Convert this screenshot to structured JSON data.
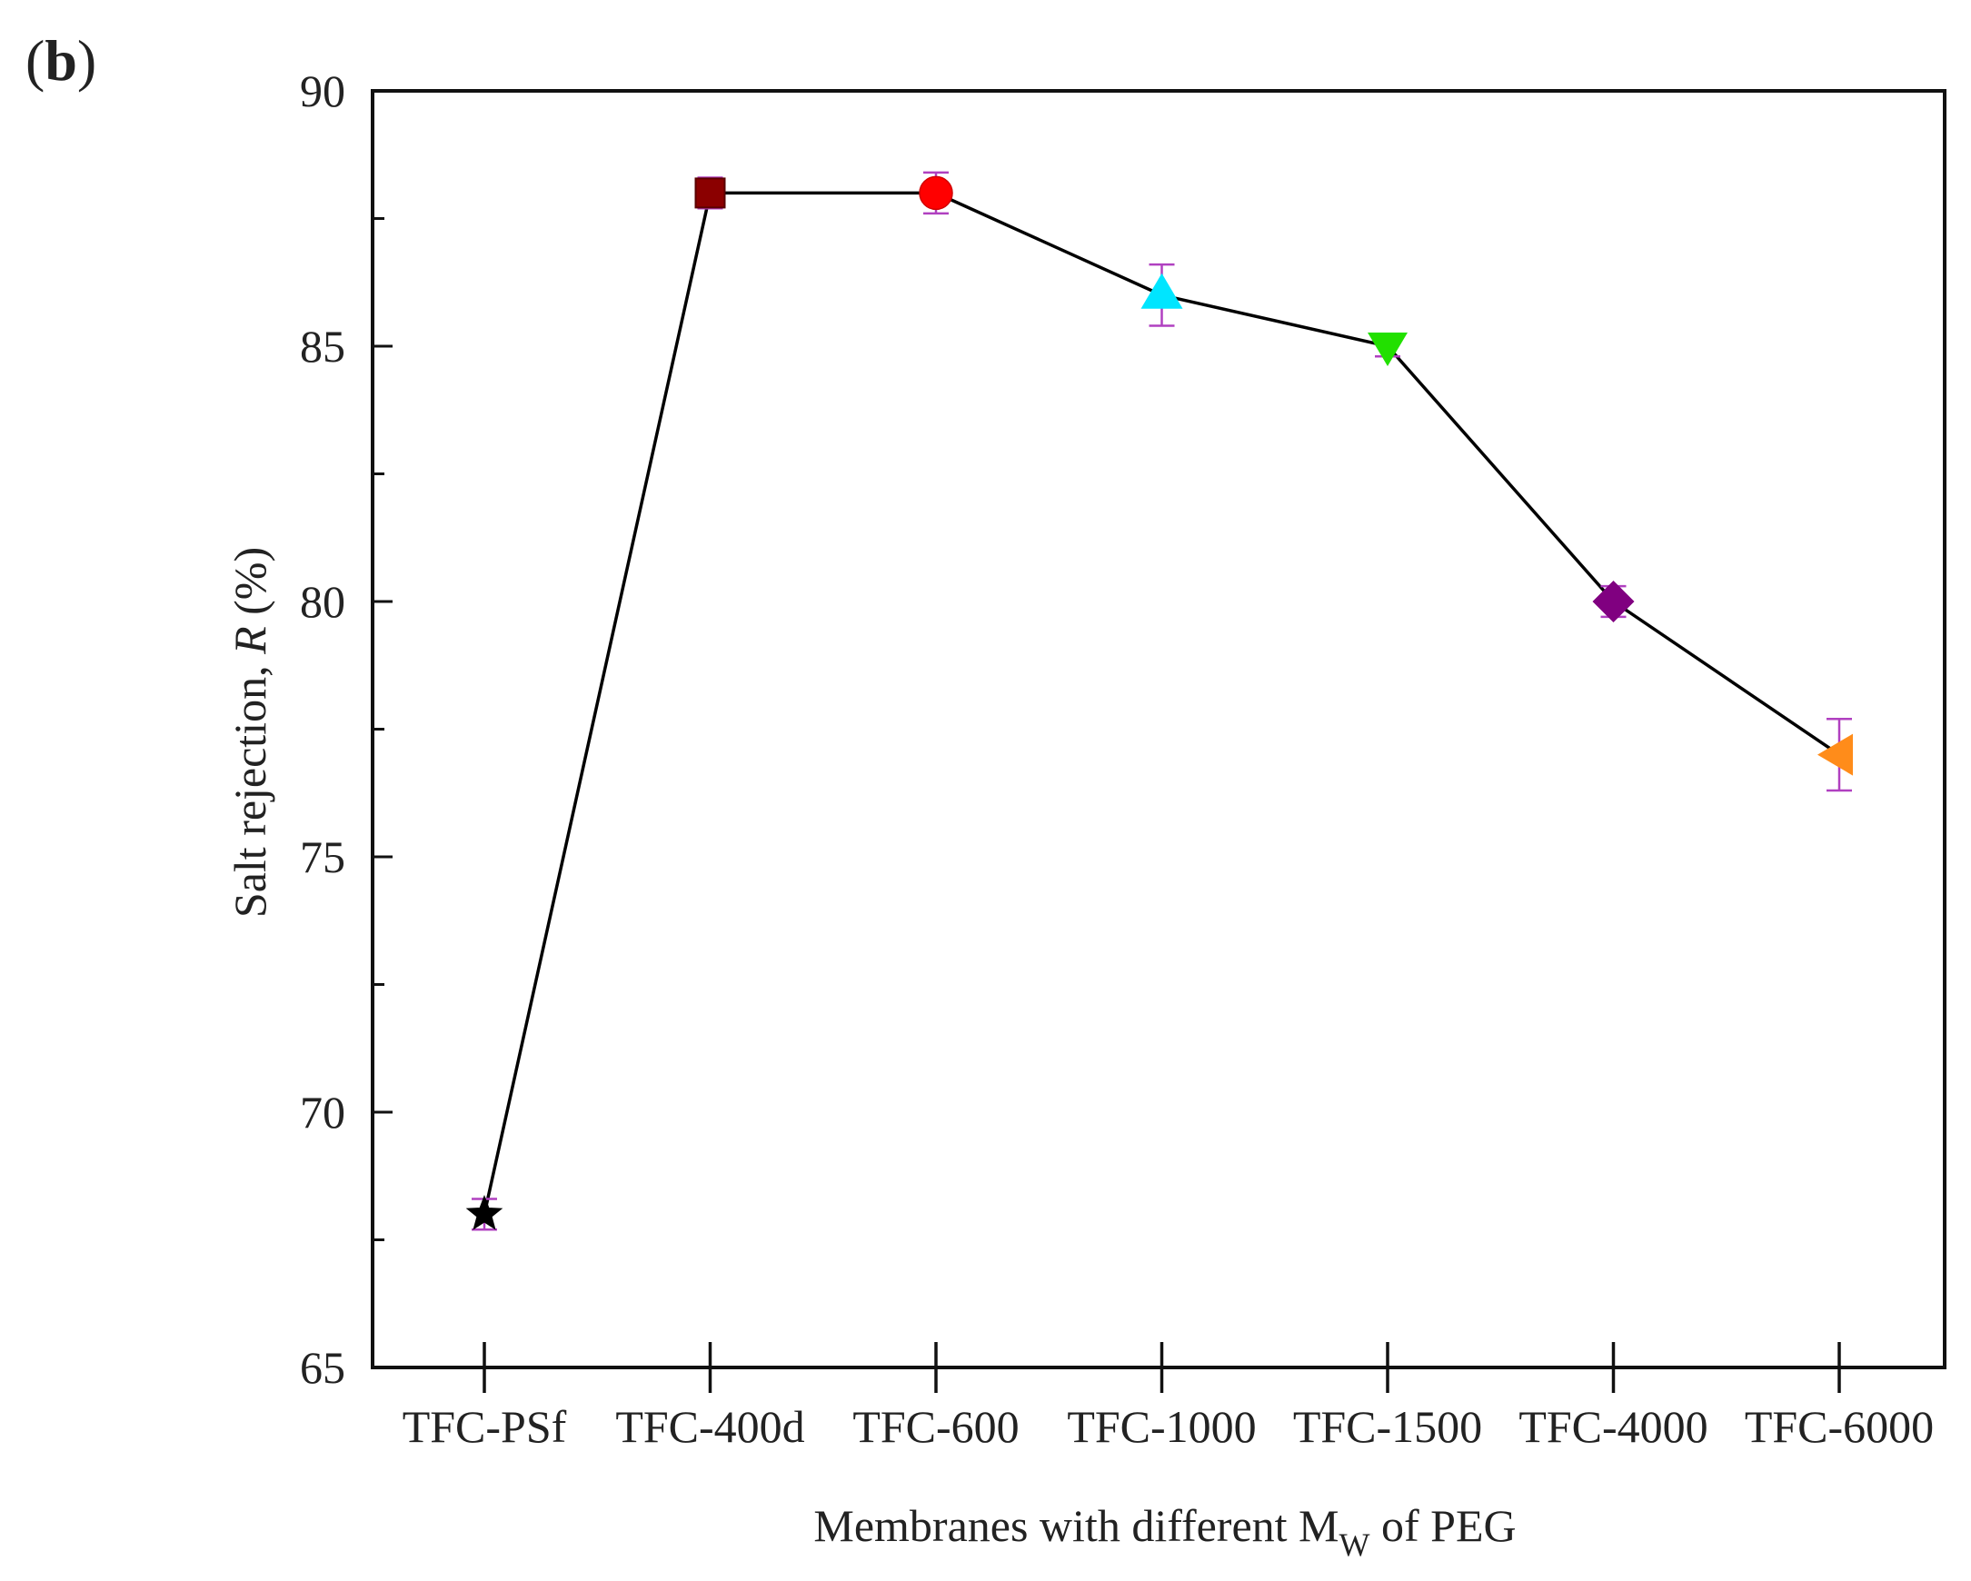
{
  "panel_label": "b",
  "chart_data": {
    "type": "line",
    "title": "",
    "xlabel": "Membranes with different M",
    "xlabel_subscript": "W",
    "xlabel_suffix": " of PEG",
    "ylabel": "Salt rejection, ",
    "ylabel_symbol": "R",
    "ylabel_unit": " (%)",
    "ylim": [
      65,
      90
    ],
    "yticks": [
      65,
      70,
      75,
      80,
      85,
      90
    ],
    "categories": [
      "TFC-PSf",
      "TFC-400d",
      "TFC-600",
      "TFC-1000",
      "TFC-1500",
      "TFC-4000",
      "TFC-6000"
    ],
    "series": [
      {
        "name": "Salt rejection",
        "values": [
          68,
          88,
          88,
          86,
          85,
          80,
          77
        ],
        "errors": [
          0.3,
          0.3,
          0.4,
          0.6,
          0.2,
          0.3,
          0.7
        ],
        "markers": [
          "star",
          "square",
          "circle",
          "triangle-up",
          "triangle-down",
          "diamond",
          "triangle-left"
        ],
        "colors": [
          "#000000",
          "#8b0000",
          "#ff0000",
          "#00e5ff",
          "#22e000",
          "#800080",
          "#ff8c1a"
        ],
        "line_color": "#000000",
        "error_color": "#b040c0"
      }
    ]
  }
}
